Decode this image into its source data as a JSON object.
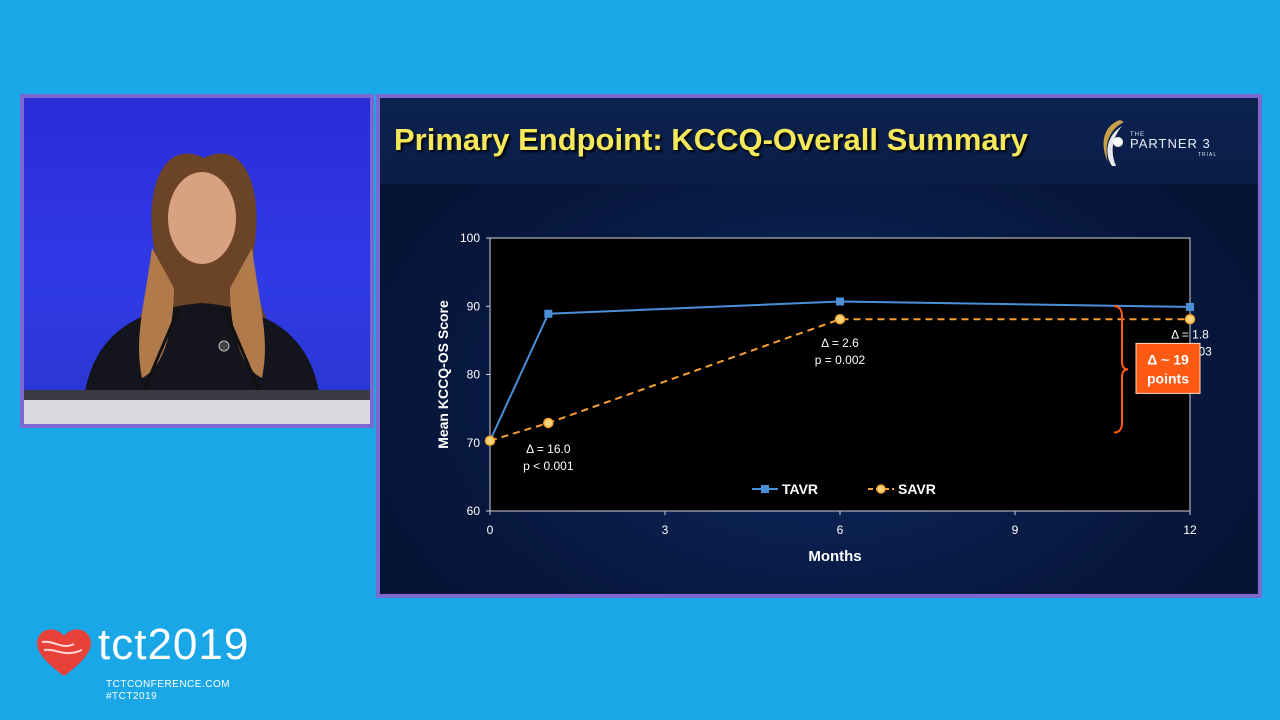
{
  "slide": {
    "title": "Primary Endpoint: KCCQ-Overall Summary",
    "logo": {
      "the": "THE",
      "name": "PARTNER 3",
      "trial": "TRIAL",
      "icon": "partner-3-trial-logo"
    }
  },
  "chart_data": {
    "type": "line",
    "xlabel": "Months",
    "ylabel": "Mean KCCQ-OS Score",
    "xlim": [
      0,
      12
    ],
    "ylim": [
      60,
      100
    ],
    "xticks": [
      "0",
      "3",
      "6",
      "9",
      "12"
    ],
    "yticks": [
      "60",
      "70",
      "80",
      "90",
      "100"
    ],
    "grid": false,
    "legend_position": "bottom-center",
    "series": [
      {
        "name": "TAVR",
        "color": "#4a8fd8",
        "marker": "square",
        "line": "solid",
        "x": [
          0,
          1,
          6,
          12
        ],
        "y": [
          70.3,
          88.9,
          90.7,
          89.9
        ]
      },
      {
        "name": "SAVR",
        "color": "#f5a030",
        "marker": "circle",
        "line": "dashed",
        "x": [
          0,
          1,
          6,
          12
        ],
        "y": [
          70.3,
          72.9,
          88.1,
          88.1
        ]
      }
    ],
    "annotations": [
      {
        "x": 1,
        "y": 68.5,
        "line1": "Δ = 16.0",
        "line2": "p < 0.001"
      },
      {
        "x": 6,
        "y": 84,
        "line1": "Δ = 2.6",
        "line2": "p = 0.002"
      },
      {
        "x": 12,
        "y": 85.3,
        "line1": "Δ = 1.8",
        "line2": "p = 0.03"
      }
    ],
    "callout": {
      "line1": "Δ ~ 19",
      "line2": "points",
      "color": "#ff5a14",
      "bracket_range": [
        71.5,
        90
      ]
    }
  },
  "branding": {
    "name": "tct2019",
    "url": "TCTCONFERENCE.COM",
    "hashtag": "#TCT2019",
    "heart_color": "#e8413a"
  }
}
